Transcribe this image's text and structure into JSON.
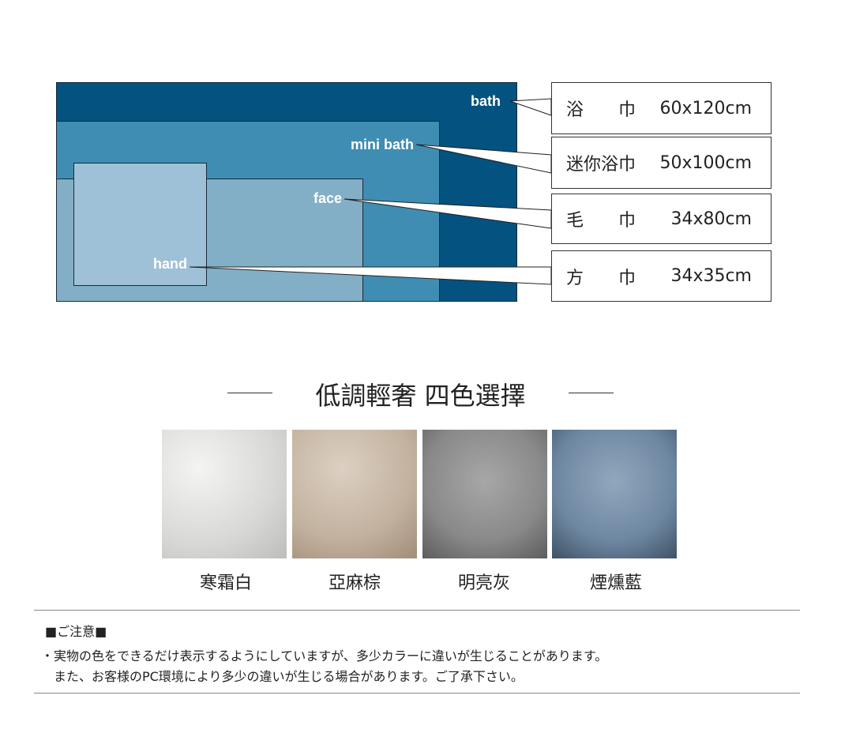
{
  "sizes": [
    {
      "key": "bath",
      "label": "bath",
      "name": "浴　　巾",
      "size": "60x120cm",
      "color": "#04527f"
    },
    {
      "key": "mini-bath",
      "label": "mini bath",
      "name": "迷你浴巾",
      "size": "50x100cm",
      "color": "#3f8db3"
    },
    {
      "key": "face",
      "label": "face",
      "name": "毛　　巾",
      "size": "34x80cm",
      "color": "#82afc6"
    },
    {
      "key": "hand",
      "label": "hand",
      "name": "方　　巾",
      "size": "34x35cm",
      "color": "#9fc1d8"
    }
  ],
  "colors_section": {
    "title": "低調輕奢 四色選擇",
    "swatches": [
      {
        "label": "寒霜白",
        "color": "#e6e6e4"
      },
      {
        "label": "亞麻棕",
        "color": "#c9baa8"
      },
      {
        "label": "明亮灰",
        "color": "#8e8d8e"
      },
      {
        "label": "煙燻藍",
        "color": "#7088a2"
      }
    ]
  },
  "notice": {
    "title": "■ご注意■",
    "line1": "・実物の色をできるだけ表示するようにしていますが、多少カラーに違いが生じることがあります。",
    "line2": "　また、お客様のPC環境により多少の違いが生じる場合があります。ご了承下さい。"
  }
}
